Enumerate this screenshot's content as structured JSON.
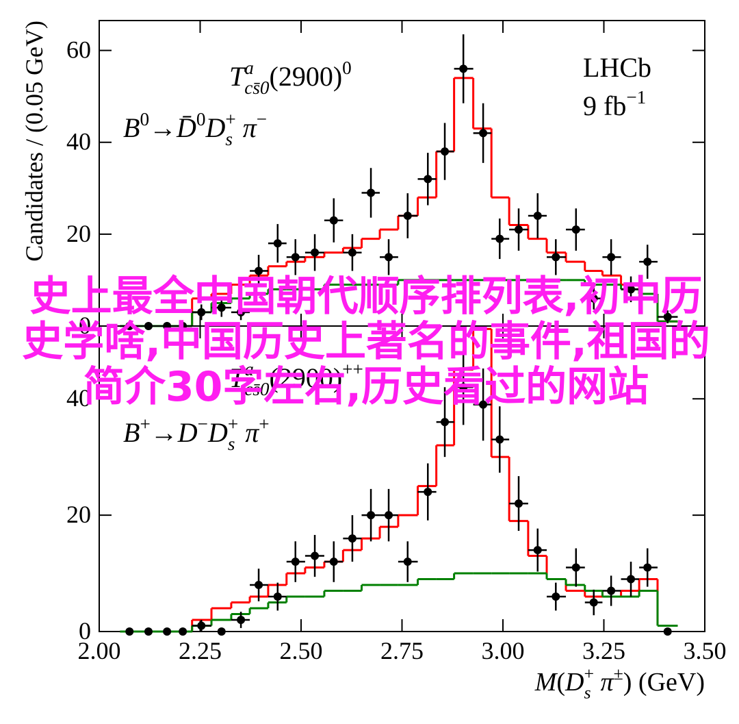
{
  "chart_data": [
    {
      "type": "errorbar",
      "ylabel": "Candidates / (0.05 GeV)",
      "xlim": [
        2.0,
        3.5
      ],
      "xticks": [
        2.0,
        2.25,
        2.5,
        2.75,
        3.0,
        3.25,
        3.5
      ],
      "ylim": [
        0,
        66.5
      ],
      "yticks": [
        0,
        20,
        40,
        60
      ],
      "x": [
        2.075,
        2.122,
        2.168,
        2.207,
        2.253,
        2.303,
        2.351,
        2.395,
        2.442,
        2.486,
        2.534,
        2.581,
        2.627,
        2.673,
        2.717,
        2.764,
        2.814,
        2.856,
        2.902,
        2.951,
        2.992,
        3.039,
        3.086,
        3.131,
        3.181,
        3.225,
        3.268,
        3.317,
        3.358,
        3.408
      ],
      "series": [
        {
          "style": "points",
          "color": "#000000",
          "values": [
            0,
            0,
            0,
            0,
            3,
            4,
            3,
            12,
            18,
            15,
            16,
            23,
            16,
            29,
            15,
            24,
            32,
            38,
            56,
            42,
            19,
            21,
            24,
            15,
            21,
            6,
            15,
            8,
            14,
            2
          ],
          "errors": [
            0,
            0,
            0,
            0,
            1.7,
            2,
            1.7,
            3.5,
            4.2,
            3.9,
            4,
            4.8,
            4,
            5.4,
            3.9,
            4.9,
            5.7,
            6.2,
            7.5,
            6.5,
            4.4,
            4.6,
            4.9,
            3.9,
            4.6,
            2.4,
            3.9,
            2.8,
            3.7,
            1.4
          ]
        },
        {
          "style": "step",
          "color": "#ff0000",
          "values": [
            0,
            0,
            0,
            0,
            6,
            7,
            9,
            11,
            13,
            14,
            15,
            16,
            17,
            19,
            21,
            24,
            28,
            38,
            54,
            43,
            28,
            22,
            19,
            16,
            14,
            12,
            11,
            9,
            7,
            1
          ]
        },
        {
          "style": "step",
          "color": "#008000",
          "values": [
            0,
            0,
            0,
            0,
            3,
            5,
            6,
            7,
            8,
            8,
            8,
            9,
            9,
            9,
            9,
            10,
            10,
            10,
            10,
            10,
            10,
            10,
            10,
            10,
            10,
            9,
            9,
            8,
            7,
            1
          ]
        }
      ],
      "annotations": [
        [
          {
            "text": "T",
            "italic": true
          },
          {
            "text": "a",
            "pos": "sup",
            "italic": true
          },
          {
            "text": "cs̄0",
            "pos": "sub",
            "italic": true
          },
          {
            "text": "(2900)"
          },
          {
            "text": "0",
            "pos": "sup"
          }
        ],
        [
          {
            "text": "B",
            "italic": true
          },
          {
            "text": "0",
            "pos": "sup"
          },
          {
            "text": "→"
          },
          {
            "text": "D̄",
            "italic": true
          },
          {
            "text": "0",
            "pos": "sup"
          },
          {
            "text": "D",
            "italic": true
          },
          {
            "text": "s",
            "pos": "sub",
            "italic": true
          },
          {
            "text": "+",
            "pos": "sup"
          },
          {
            "text": " π",
            "italic": true
          },
          {
            "text": "−",
            "pos": "sup"
          }
        ],
        [
          {
            "text": "LHCb"
          }
        ],
        [
          {
            "text": "9 fb"
          },
          {
            "text": "−1",
            "pos": "sup"
          }
        ]
      ]
    },
    {
      "type": "errorbar",
      "xlabel": [
        {
          "text": "M",
          "italic": true
        },
        {
          "text": "("
        },
        {
          "text": "D",
          "italic": true
        },
        {
          "text": "s",
          "pos": "sub",
          "italic": true
        },
        {
          "text": "+",
          "pos": "sup"
        },
        {
          "text": " π",
          "italic": true
        },
        {
          "text": "±",
          "pos": "sup"
        },
        {
          "text": ") (GeV)"
        }
      ],
      "xlim": [
        2.0,
        3.5
      ],
      "xticks": [
        {
          "value": 2.0,
          "label": "2.00"
        },
        {
          "value": 2.25,
          "label": "2.25"
        },
        {
          "value": 2.5,
          "label": "2.50"
        },
        {
          "value": 2.75,
          "label": "2.75"
        },
        {
          "value": 3.0,
          "label": "3.00"
        },
        {
          "value": 3.25,
          "label": "3.25"
        },
        {
          "value": 3.5,
          "label": "3.50"
        }
      ],
      "ylim": [
        0,
        52.5
      ],
      "yticks": [
        0,
        20,
        40
      ],
      "x": [
        2.075,
        2.122,
        2.168,
        2.207,
        2.253,
        2.303,
        2.351,
        2.395,
        2.442,
        2.486,
        2.534,
        2.581,
        2.627,
        2.673,
        2.717,
        2.764,
        2.814,
        2.856,
        2.902,
        2.951,
        2.992,
        3.039,
        3.086,
        3.131,
        3.181,
        3.225,
        3.268,
        3.317,
        3.358,
        3.408
      ],
      "series": [
        {
          "style": "points",
          "color": "#000000",
          "values": [
            0,
            0,
            0,
            0,
            1,
            0,
            2,
            8,
            6,
            12,
            13,
            12,
            16,
            20,
            20,
            12,
            24,
            36,
            42,
            39,
            33,
            22,
            14,
            6,
            11,
            5,
            7,
            9,
            11,
            0
          ],
          "errors": [
            0,
            0,
            0,
            0,
            1,
            0,
            1.4,
            2.8,
            2.4,
            3.5,
            3.6,
            3.5,
            4,
            4.5,
            4.5,
            3.5,
            4.9,
            6,
            6.5,
            6.2,
            5.7,
            4.7,
            3.7,
            2.4,
            3.3,
            2.2,
            2.6,
            3,
            3.3,
            0
          ]
        },
        {
          "style": "step",
          "color": "#ff0000",
          "values": [
            0,
            0,
            0,
            0,
            2,
            4,
            5,
            6,
            8,
            10,
            11,
            12,
            14,
            16,
            18,
            20,
            25,
            32,
            45,
            52,
            30,
            19,
            13,
            9,
            7,
            6,
            6,
            7,
            9,
            1
          ]
        },
        {
          "style": "step",
          "color": "#008000",
          "values": [
            0,
            0,
            0,
            0,
            1,
            2,
            3,
            4,
            5,
            6,
            6,
            7,
            7,
            8,
            8,
            8,
            9,
            9,
            10,
            10,
            10,
            10,
            10,
            9,
            8,
            7,
            6,
            6,
            7,
            1
          ]
        }
      ],
      "annotations": [
        [
          {
            "text": "T",
            "italic": true
          },
          {
            "text": "a",
            "pos": "sup",
            "italic": true
          },
          {
            "text": "cs̄0",
            "pos": "sub",
            "italic": true
          },
          {
            "text": "(2900)"
          },
          {
            "text": "++",
            "pos": "sup"
          }
        ],
        [
          {
            "text": "B",
            "italic": true
          },
          {
            "text": "+",
            "pos": "sup"
          },
          {
            "text": "→"
          },
          {
            "text": "D",
            "italic": true
          },
          {
            "text": "−",
            "pos": "sup"
          },
          {
            "text": "D",
            "italic": true
          },
          {
            "text": "s",
            "pos": "sub",
            "italic": true
          },
          {
            "text": "+",
            "pos": "sup"
          },
          {
            "text": " π",
            "italic": true
          },
          {
            "text": "+",
            "pos": "sup"
          }
        ]
      ]
    }
  ],
  "watermark": "史上最全中国朝代顺序排列表,初中历史学啥,中国历史上著名的事件,祖国的简介30字左右,历史看过的网站"
}
